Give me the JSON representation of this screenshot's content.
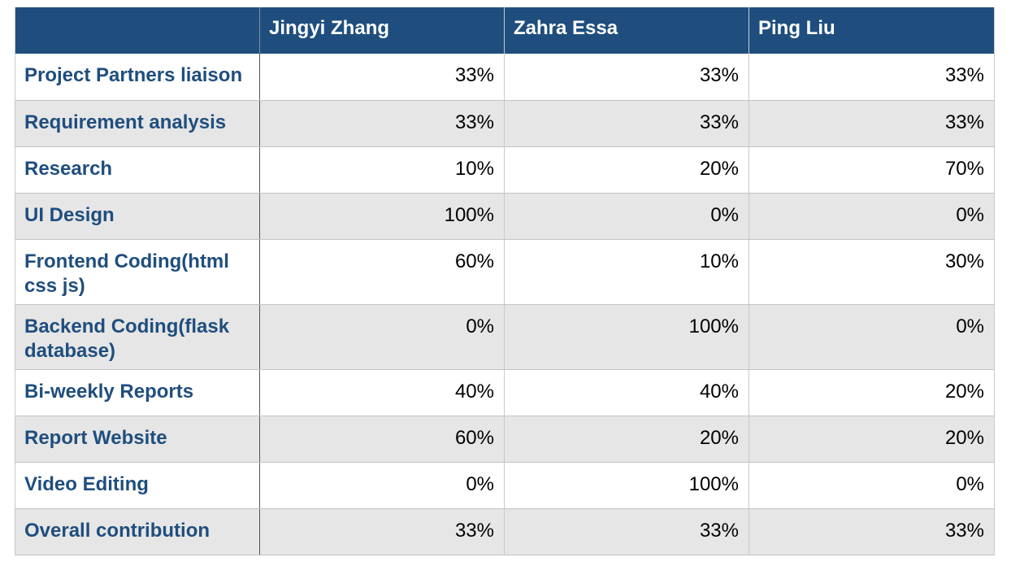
{
  "table": {
    "header": [
      "",
      "Jingyi Zhang",
      "Zahra Essa",
      "Ping Liu"
    ],
    "rows": [
      {
        "task": "Project Partners liaison",
        "values": [
          "33%",
          "33%",
          "33%"
        ]
      },
      {
        "task": "Requirement analysis",
        "values": [
          "33%",
          "33%",
          "33%"
        ]
      },
      {
        "task": "Research",
        "values": [
          "10%",
          "20%",
          "70%"
        ]
      },
      {
        "task": "UI Design",
        "values": [
          "100%",
          "0%",
          "0%"
        ]
      },
      {
        "task": "Frontend Coding(html css js)",
        "values": [
          "60%",
          "10%",
          "30%"
        ]
      },
      {
        "task": "Backend Coding(flask database)",
        "values": [
          "0%",
          "100%",
          "0%"
        ]
      },
      {
        "task": "Bi-weekly Reports",
        "values": [
          "40%",
          "40%",
          "20%"
        ]
      },
      {
        "task": "Report Website",
        "values": [
          "60%",
          "20%",
          "20%"
        ]
      },
      {
        "task": "Video Editing",
        "values": [
          "0%",
          "100%",
          "0%"
        ]
      },
      {
        "task": "Overall contribution",
        "values": [
          "33%",
          "33%",
          "33%"
        ]
      }
    ]
  },
  "colors": {
    "header_bg": "#1f4e7e",
    "header_text": "#ffffff",
    "task_text": "#1f4e7e",
    "stripe_bg": "#e6e6e6"
  }
}
